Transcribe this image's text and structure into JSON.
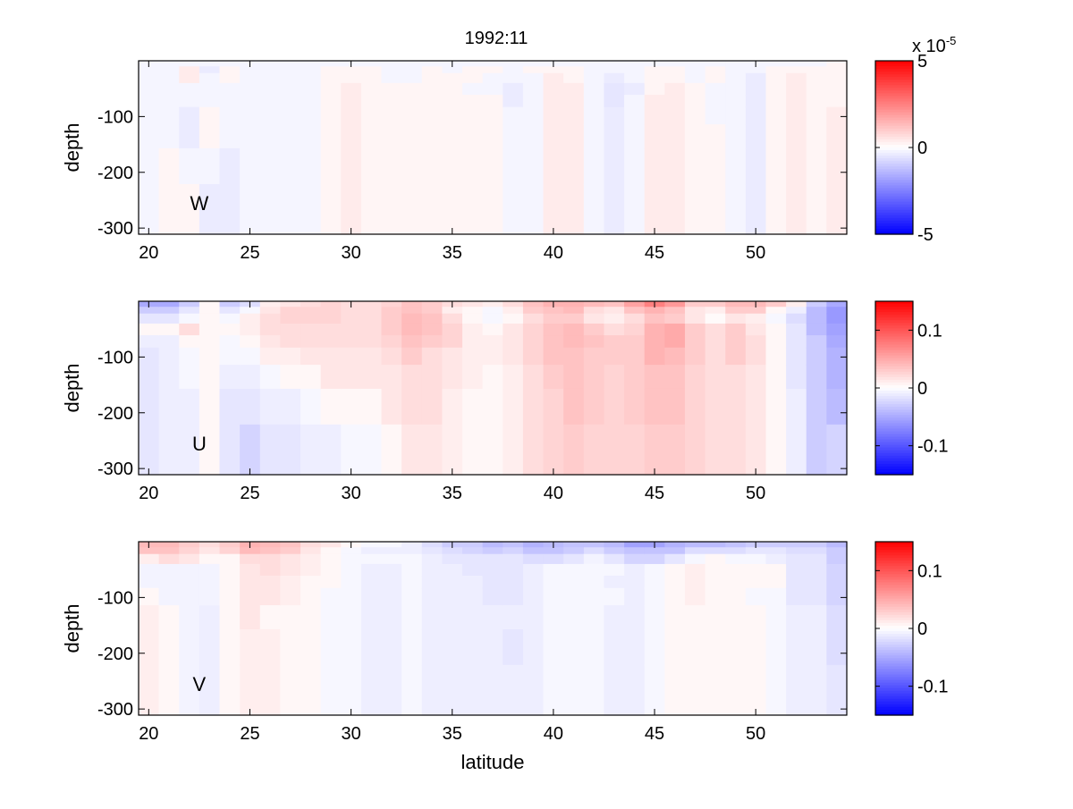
{
  "figure": {
    "title": "1992:11",
    "xlabel": "latitude"
  },
  "chart_data": [
    {
      "type": "heatmap",
      "panel_label": "W",
      "ylabel": "depth",
      "xlim": [
        19.5,
        54.5
      ],
      "ylim": [
        -311,
        0
      ],
      "xticks": [
        20,
        25,
        30,
        35,
        40,
        45,
        50
      ],
      "yticks": [
        -100,
        -200,
        -300
      ],
      "latitudes": [
        20,
        21,
        22,
        23,
        24,
        25,
        26,
        27,
        28,
        29,
        30,
        31,
        32,
        33,
        34,
        35,
        36,
        37,
        38,
        39,
        40,
        41,
        42,
        43,
        44,
        45,
        46,
        47,
        48,
        49,
        50,
        51,
        52,
        53,
        54
      ],
      "depth_edges": [
        0,
        -10,
        -22,
        -40,
        -61,
        -83,
        -114,
        -157,
        -221,
        -311
      ],
      "clim": [
        -5,
        5
      ],
      "colorbar_ticks": [
        5,
        0,
        -5
      ],
      "colorbar_exponent": "x 10",
      "colorbar_exponent_power": "-5",
      "value_units_multiplier": 1e-05,
      "values_by_latitude": [
        [
          -0.2,
          -0.2,
          -0.2,
          -0.2,
          -0.2,
          -0.2,
          -0.2,
          -0.2,
          -0.2
        ],
        [
          -0.2,
          -0.2,
          -0.2,
          -0.2,
          -0.2,
          -0.2,
          -0.2,
          0.2,
          0.2
        ],
        [
          -0.2,
          0.4,
          0.4,
          -0.2,
          -0.2,
          -0.4,
          -0.4,
          -0.2,
          0.2
        ],
        [
          -0.2,
          -0.4,
          -0.2,
          -0.2,
          -0.2,
          0.2,
          0.2,
          -0.2,
          -0.4
        ],
        [
          -0.2,
          0.2,
          0.2,
          -0.2,
          -0.2,
          -0.2,
          -0.2,
          -0.4,
          -0.4
        ],
        [
          -0.2,
          -0.2,
          -0.2,
          -0.2,
          -0.2,
          -0.2,
          -0.2,
          -0.2,
          -0.2
        ],
        [
          -0.2,
          -0.2,
          -0.2,
          -0.2,
          -0.2,
          -0.2,
          -0.2,
          -0.2,
          -0.2
        ],
        [
          -0.2,
          -0.2,
          -0.2,
          -0.2,
          -0.2,
          -0.2,
          -0.2,
          -0.2,
          -0.2
        ],
        [
          -0.2,
          -0.2,
          -0.2,
          -0.2,
          -0.2,
          -0.2,
          -0.2,
          -0.2,
          -0.2
        ],
        [
          -0.2,
          0.2,
          0.2,
          0.2,
          0.2,
          0.2,
          0.2,
          0.2,
          0.2
        ],
        [
          -0.2,
          0.2,
          0.2,
          0.4,
          0.4,
          0.4,
          0.4,
          0.4,
          0.4
        ],
        [
          -0.2,
          0.2,
          0.2,
          0.2,
          0.2,
          0.2,
          0.2,
          0.2,
          0.2
        ],
        [
          -0.2,
          -0.2,
          -0.2,
          0.2,
          0.2,
          0.2,
          0.2,
          0.2,
          0.2
        ],
        [
          -0.2,
          -0.2,
          -0.2,
          0.2,
          0.2,
          0.2,
          0.2,
          0.2,
          0.2
        ],
        [
          -0.2,
          0.2,
          0.2,
          0.2,
          0.2,
          0.2,
          0.2,
          0.2,
          0.2
        ],
        [
          -0.2,
          -0.2,
          0.2,
          0.2,
          0.2,
          0.2,
          0.2,
          0.2,
          0.2
        ],
        [
          -0.2,
          0.2,
          0.2,
          -0.2,
          0.2,
          0.2,
          0.2,
          0.2,
          0.2
        ],
        [
          -0.2,
          0.2,
          -0.2,
          -0.2,
          0.2,
          0.2,
          0.2,
          0.2,
          0.2
        ],
        [
          -0.2,
          -0.2,
          -0.2,
          -0.4,
          -0.4,
          -0.2,
          -0.2,
          -0.2,
          -0.2
        ],
        [
          -0.2,
          0.2,
          -0.2,
          -0.2,
          -0.2,
          -0.2,
          -0.2,
          -0.2,
          -0.2
        ],
        [
          -0.2,
          0.2,
          0.4,
          0.4,
          0.4,
          0.4,
          0.4,
          0.4,
          0.4
        ],
        [
          -0.2,
          0.2,
          0.2,
          0.4,
          0.4,
          0.4,
          0.4,
          0.4,
          0.4
        ],
        [
          -0.2,
          -0.2,
          -0.2,
          -0.2,
          -0.2,
          -0.2,
          -0.2,
          -0.2,
          -0.2
        ],
        [
          -0.2,
          -0.2,
          -0.4,
          -0.5,
          -0.5,
          -0.4,
          -0.4,
          -0.4,
          -0.4
        ],
        [
          -0.2,
          -0.2,
          -0.2,
          -0.4,
          -0.2,
          -0.2,
          -0.2,
          -0.2,
          -0.2
        ],
        [
          -0.2,
          0.2,
          0.2,
          0.2,
          0.4,
          0.4,
          0.4,
          0.4,
          0.4
        ],
        [
          -0.2,
          0.2,
          0.2,
          0.4,
          0.4,
          0.4,
          0.4,
          0.4,
          0.4
        ],
        [
          -0.2,
          -0.2,
          -0.2,
          0.2,
          0.2,
          0.2,
          0.2,
          0.2,
          0.2
        ],
        [
          -0.2,
          0.2,
          0.2,
          -0.2,
          -0.2,
          -0.2,
          0.2,
          0.2,
          0.2
        ],
        [
          -0.2,
          -0.2,
          -0.2,
          -0.2,
          -0.2,
          -0.2,
          -0.2,
          -0.2,
          -0.2
        ],
        [
          -0.2,
          -0.2,
          -0.4,
          -0.4,
          -0.4,
          -0.4,
          -0.4,
          -0.4,
          -0.4
        ],
        [
          -0.2,
          0.2,
          0.2,
          0.2,
          0.2,
          0.2,
          0.2,
          0.2,
          0.2
        ],
        [
          -0.2,
          0.2,
          0.4,
          0.4,
          0.4,
          0.4,
          0.4,
          0.4,
          0.4
        ],
        [
          -0.2,
          0.2,
          0.2,
          0.2,
          0.2,
          0.2,
          0.2,
          0.2,
          0.2
        ],
        [
          0.2,
          0.2,
          0.2,
          0.2,
          0.2,
          0.4,
          0.4,
          0.4,
          0.4
        ]
      ]
    },
    {
      "type": "heatmap",
      "panel_label": "U",
      "ylabel": "depth",
      "xlim": [
        19.5,
        54.5
      ],
      "ylim": [
        -311,
        0
      ],
      "xticks": [
        20,
        25,
        30,
        35,
        40,
        45,
        50
      ],
      "yticks": [
        -100,
        -200,
        -300
      ],
      "latitudes": [
        20,
        21,
        22,
        23,
        24,
        25,
        26,
        27,
        28,
        29,
        30,
        31,
        32,
        33,
        34,
        35,
        36,
        37,
        38,
        39,
        40,
        41,
        42,
        43,
        44,
        45,
        46,
        47,
        48,
        49,
        50,
        51,
        52,
        53,
        54
      ],
      "depth_edges": [
        0,
        -10,
        -22,
        -40,
        -61,
        -83,
        -114,
        -157,
        -221,
        -311
      ],
      "clim": [
        -0.15,
        0.15
      ],
      "colorbar_ticks": [
        0.1,
        0,
        -0.1
      ],
      "value_units_multiplier": 0.01,
      "values_by_latitude": [
        [
          -5,
          -3,
          -1.5,
          0.5,
          -1,
          -1.5,
          -1.5,
          -1.5,
          -1.5
        ],
        [
          -5,
          -3,
          -1.5,
          0.5,
          -1,
          -1,
          -1,
          -1,
          -1
        ],
        [
          -3,
          -1.5,
          -0.5,
          2,
          0.5,
          -0.5,
          -0.5,
          -1,
          -1
        ],
        [
          0.5,
          0.5,
          0.5,
          0.5,
          0.5,
          0.5,
          0.5,
          0.5,
          0.5
        ],
        [
          -3,
          -1.5,
          -0.5,
          0.5,
          -0.5,
          -0.5,
          -1,
          -1.5,
          -1.5
        ],
        [
          -2,
          -0.5,
          1,
          1,
          0.5,
          -0.5,
          -1,
          -1.5,
          -2.5
        ],
        [
          1,
          1.5,
          2,
          2,
          1.5,
          1,
          -0.5,
          -1,
          -1.5
        ],
        [
          1.5,
          2.5,
          2.5,
          2,
          2,
          1,
          0.5,
          -1,
          -1.5
        ],
        [
          2,
          2.5,
          2.5,
          2,
          2,
          1.5,
          0.5,
          -0.5,
          -1
        ],
        [
          2.5,
          2.5,
          2.5,
          2,
          2,
          1.5,
          1.5,
          0.5,
          -1
        ],
        [
          2,
          2,
          2,
          2,
          2,
          1.5,
          1.5,
          0.5,
          -0.5
        ],
        [
          2,
          2,
          2,
          2,
          2,
          1.5,
          1.5,
          0.5,
          -0.5
        ],
        [
          2.5,
          3,
          3,
          3,
          2.5,
          2,
          1.5,
          1.5,
          0.5
        ],
        [
          3.5,
          3.5,
          4,
          4,
          3.5,
          3,
          2,
          2,
          1.5
        ],
        [
          3,
          3,
          3.5,
          3.5,
          3,
          2,
          2,
          2,
          1.5
        ],
        [
          2,
          1,
          2,
          2.5,
          2.5,
          1.5,
          1.5,
          1,
          1
        ],
        [
          1.5,
          0.5,
          0.5,
          1,
          1,
          1,
          1,
          0.5,
          0.5
        ],
        [
          1,
          -0.5,
          -0.5,
          0.5,
          1,
          1,
          0.5,
          0.5,
          0.5
        ],
        [
          2,
          1,
          0.5,
          1.5,
          1.5,
          1.5,
          1,
          1,
          1
        ],
        [
          3.5,
          3,
          2,
          2.5,
          2.5,
          2.5,
          2,
          2,
          2
        ],
        [
          4.5,
          3.5,
          3,
          3.5,
          3.5,
          3.5,
          3,
          2.5,
          2.5
        ],
        [
          4.5,
          4,
          3,
          4,
          4,
          3.5,
          3.5,
          3.5,
          3
        ],
        [
          4,
          2,
          1.5,
          3,
          3.5,
          3,
          3,
          3,
          2.5
        ],
        [
          3.5,
          1.5,
          1,
          2,
          3,
          3,
          2.5,
          2.5,
          2.5
        ],
        [
          5.5,
          3.5,
          2,
          2.5,
          3,
          3,
          3,
          3,
          2.5
        ],
        [
          7.5,
          4.5,
          3.5,
          4.5,
          4.5,
          4.5,
          3.5,
          3.5,
          3
        ],
        [
          6,
          3.5,
          3,
          5,
          5,
          4,
          3.5,
          3.5,
          3
        ],
        [
          3,
          1.5,
          1.5,
          3,
          3,
          3,
          2.5,
          2.5,
          2.5
        ],
        [
          3,
          1,
          0.3,
          2,
          2,
          2,
          2,
          2,
          2
        ],
        [
          4,
          3,
          1.5,
          3,
          3,
          3,
          2,
          2,
          2
        ],
        [
          4,
          3,
          1,
          1.5,
          2,
          2,
          1.5,
          1.5,
          1.5
        ],
        [
          3,
          0.5,
          -0.5,
          0.5,
          0.5,
          0.5,
          0.5,
          0.5,
          0.5
        ],
        [
          1,
          -1,
          -2,
          -1.5,
          -1.5,
          -1.5,
          -1.5,
          -1,
          -1
        ],
        [
          -3,
          -4,
          -4,
          -4,
          -3,
          -3,
          -3,
          -3,
          -3
        ],
        [
          -5,
          -6,
          -6,
          -5.5,
          -5,
          -4.5,
          -4.5,
          -4,
          -2.5
        ]
      ]
    },
    {
      "type": "heatmap",
      "panel_label": "V",
      "ylabel": "depth",
      "xlim": [
        19.5,
        54.5
      ],
      "ylim": [
        -311,
        0
      ],
      "xticks": [
        20,
        25,
        30,
        35,
        40,
        45,
        50
      ],
      "yticks": [
        -100,
        -200,
        -300
      ],
      "latitudes": [
        20,
        21,
        22,
        23,
        24,
        25,
        26,
        27,
        28,
        29,
        30,
        31,
        32,
        33,
        34,
        35,
        36,
        37,
        38,
        39,
        40,
        41,
        42,
        43,
        44,
        45,
        46,
        47,
        48,
        49,
        50,
        51,
        52,
        53,
        54
      ],
      "depth_edges": [
        0,
        -10,
        -22,
        -40,
        -61,
        -83,
        -114,
        -157,
        -221,
        -311
      ],
      "clim": [
        -0.15,
        0.15
      ],
      "colorbar_ticks": [
        0.1,
        0,
        -0.1
      ],
      "value_units_multiplier": 0.01,
      "values_by_latitude": [
        [
          4,
          3.5,
          1,
          -0.7,
          -0.7,
          0.5,
          1,
          1,
          1
        ],
        [
          4,
          3.5,
          2,
          -0.7,
          -0.7,
          -0.7,
          0.5,
          0.5,
          0.5
        ],
        [
          3,
          2.5,
          1.5,
          -0.7,
          -0.7,
          -0.7,
          -0.7,
          -0.7,
          -0.7
        ],
        [
          2,
          1.5,
          0.5,
          -0.7,
          -0.7,
          -0.7,
          -1,
          -1,
          -1
        ],
        [
          3,
          2.5,
          0.5,
          0.5,
          0.5,
          0.5,
          0.5,
          0.5,
          0.5
        ],
        [
          4.5,
          4,
          2,
          1.5,
          1.5,
          1.5,
          1.5,
          1,
          1
        ],
        [
          4,
          3.5,
          2,
          2,
          1.5,
          1.5,
          0.5,
          1,
          1
        ],
        [
          3.5,
          3,
          1.5,
          1.5,
          1,
          1,
          0.5,
          0.5,
          0.5
        ],
        [
          2,
          1.5,
          1,
          1,
          0.5,
          0.5,
          0.5,
          0.5,
          0.5
        ],
        [
          1.5,
          0.5,
          0.5,
          0.5,
          0.5,
          -0.5,
          -0.5,
          -0.5,
          -0.5
        ],
        [
          0.5,
          -0.5,
          -0.5,
          -0.5,
          -0.5,
          -0.5,
          -0.5,
          -0.5,
          -0.5
        ],
        [
          -0.5,
          -1,
          -0.5,
          -1,
          -1,
          -1,
          -1,
          -1,
          -1
        ],
        [
          -0.5,
          -1,
          -0.5,
          -1,
          -1,
          -1,
          -1,
          -1,
          -1
        ],
        [
          -1,
          -1,
          -0.5,
          -0.5,
          -0.5,
          -0.5,
          -0.5,
          -0.5,
          -0.5
        ],
        [
          -2,
          -1.5,
          -1,
          -1,
          -1,
          -1,
          -1,
          -1,
          -1
        ],
        [
          -3,
          -2,
          -1.5,
          -1,
          -1,
          -1,
          -1,
          -1,
          -1
        ],
        [
          -3,
          -2.5,
          -1.5,
          -1.5,
          -1,
          -1,
          -1,
          -1,
          -1
        ],
        [
          -4,
          -3,
          -1.5,
          -1.5,
          -1.5,
          -1.5,
          -1,
          -1,
          -1
        ],
        [
          -3.5,
          -2.5,
          -1.5,
          -1.5,
          -1.5,
          -1.5,
          -1,
          -1.5,
          -1
        ],
        [
          -4.5,
          -3.5,
          -2,
          -1,
          -1,
          -1,
          -1,
          -1,
          -1
        ],
        [
          -4,
          -3.5,
          -2,
          -0.5,
          -0.5,
          -0.5,
          -0.5,
          -0.5,
          -0.5
        ],
        [
          -3.5,
          -3,
          -1.5,
          -0.5,
          -0.5,
          -0.5,
          -0.5,
          -0.5,
          -0.5
        ],
        [
          -3.5,
          -2,
          -0.7,
          -0.5,
          -0.5,
          -0.5,
          -0.5,
          -0.5,
          -0.5
        ],
        [
          -4,
          -3,
          -1.5,
          -0.5,
          -1,
          -0.5,
          -1,
          -1,
          -1
        ],
        [
          -5.5,
          -3.5,
          -2.5,
          -1,
          -1,
          -1,
          -1,
          -1,
          -1
        ],
        [
          -5.5,
          -3.5,
          -2.5,
          -0.5,
          -0.5,
          -0.5,
          -0.5,
          -0.5,
          -0.5
        ],
        [
          -4.5,
          -3.5,
          -1.5,
          0.5,
          0.5,
          0.5,
          0.5,
          0.5,
          0.5
        ],
        [
          -4,
          -2,
          -0.5,
          1,
          1,
          1,
          0.5,
          0.5,
          0.5
        ],
        [
          -4,
          -2,
          0.5,
          0.5,
          0.5,
          0.5,
          0.5,
          0.5,
          0.5
        ],
        [
          -3.5,
          -2,
          -0.5,
          0.5,
          0.5,
          0.5,
          0.5,
          0.5,
          0.5
        ],
        [
          -3,
          -1.5,
          -0.5,
          0.5,
          0.5,
          -0.5,
          0.5,
          0.5,
          0.5
        ],
        [
          -3,
          -1.5,
          -1,
          0.5,
          0.5,
          -0.5,
          -0.5,
          -0.5,
          -0.5
        ],
        [
          -3,
          -2,
          -1.5,
          -1.5,
          -1.5,
          -1.5,
          -1,
          -1,
          -1
        ],
        [
          -3,
          -2,
          -1.5,
          -1.5,
          -1.5,
          -1.5,
          -1,
          -1,
          -1
        ],
        [
          -4,
          -3,
          -3,
          -2.5,
          -2.5,
          -2.5,
          -2,
          -2,
          -1.5
        ]
      ]
    }
  ]
}
